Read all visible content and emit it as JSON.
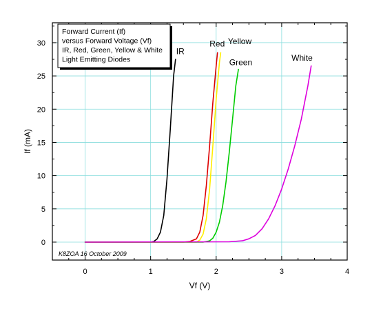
{
  "chart_data": {
    "type": "line",
    "title_lines": [
      "Forward Current (If)",
      "versus Forward Voltage (Vf)",
      "IR, Red, Green, Yellow & White",
      "Light Emitting Diodes"
    ],
    "xlabel": "Vf (V)",
    "ylabel": "If (mA)",
    "xlim": [
      -0.5,
      4
    ],
    "ylim": [
      -2.7,
      33
    ],
    "x_ticks": [
      0,
      1,
      2,
      3,
      4
    ],
    "y_ticks": [
      0,
      5,
      10,
      15,
      20,
      25,
      30
    ],
    "grid": true,
    "credit": "K8ZOA 16 October 2009",
    "series": [
      {
        "name": "IR",
        "color": "#000000",
        "x": [
          0.0,
          1.0,
          1.05,
          1.1,
          1.15,
          1.2,
          1.25,
          1.3,
          1.35,
          1.38
        ],
        "y": [
          0.0,
          0.0,
          0.1,
          0.5,
          1.5,
          4.0,
          9.5,
          17.0,
          25.0,
          27.5
        ]
      },
      {
        "name": "Red",
        "color": "#dd0000",
        "x": [
          0.0,
          1.5,
          1.6,
          1.7,
          1.75,
          1.8,
          1.85,
          1.9,
          1.95,
          2.0,
          2.02
        ],
        "y": [
          0.0,
          0.0,
          0.1,
          0.5,
          1.5,
          4.0,
          8.5,
          14.5,
          21.0,
          26.5,
          28.5
        ]
      },
      {
        "name": "Yellow",
        "color": "#ffee00",
        "x": [
          0.0,
          1.7,
          1.75,
          1.8,
          1.85,
          1.9,
          1.95,
          2.0,
          2.05,
          2.07
        ],
        "y": [
          0.0,
          0.0,
          0.3,
          1.2,
          3.5,
          8.0,
          14.5,
          21.5,
          27.0,
          28.5
        ]
      },
      {
        "name": "Green",
        "color": "#00cc00",
        "x": [
          0.0,
          1.8,
          1.9,
          1.95,
          2.0,
          2.05,
          2.1,
          2.15,
          2.2,
          2.25,
          2.3,
          2.34
        ],
        "y": [
          0.0,
          0.0,
          0.2,
          0.6,
          1.5,
          3.0,
          5.5,
          9.0,
          13.5,
          18.5,
          23.5,
          26.0
        ]
      },
      {
        "name": "White",
        "color": "#dd00dd",
        "x": [
          0.0,
          2.2,
          2.4,
          2.5,
          2.6,
          2.7,
          2.8,
          2.9,
          3.0,
          3.1,
          3.2,
          3.3,
          3.4,
          3.45
        ],
        "y": [
          0.0,
          0.05,
          0.2,
          0.5,
          1.0,
          2.0,
          3.5,
          5.5,
          8.0,
          11.0,
          14.5,
          18.5,
          23.5,
          26.5
        ]
      }
    ],
    "annotations": [
      {
        "text": "IR",
        "x": 1.39,
        "y": 28.3
      },
      {
        "text": "Red",
        "x": 1.9,
        "y": 29.4
      },
      {
        "text": "Yellow",
        "x": 2.18,
        "y": 29.8
      },
      {
        "text": "Green",
        "x": 2.2,
        "y": 26.6
      },
      {
        "text": "White",
        "x": 3.15,
        "y": 27.3
      }
    ]
  }
}
